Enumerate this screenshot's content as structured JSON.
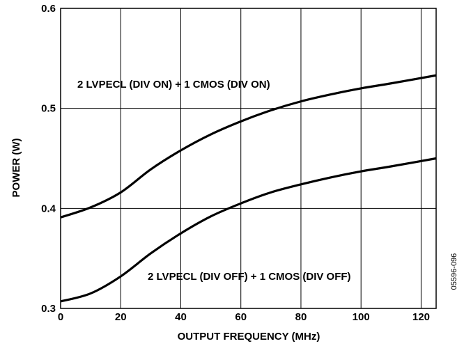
{
  "chart_data": {
    "type": "line",
    "xlabel": "OUTPUT FREQUENCY (MHz)",
    "ylabel": "POWER (W)",
    "xlim": [
      0,
      125
    ],
    "ylim": [
      0.3,
      0.6
    ],
    "x_ticks": [
      0,
      20,
      40,
      60,
      80,
      100,
      120
    ],
    "y_ticks": [
      0.3,
      0.4,
      0.5,
      0.6
    ],
    "x_tick_labels": [
      "0",
      "20",
      "40",
      "60",
      "80",
      "100",
      "120"
    ],
    "y_tick_labels": [
      "0.3",
      "0.4",
      "0.5",
      "0.6"
    ],
    "grid": true,
    "series": [
      {
        "name": "2 LVPECL (DIV ON) + 1 CMOS (DIV ON)",
        "x": [
          0,
          10,
          20,
          30,
          40,
          50,
          60,
          70,
          80,
          90,
          100,
          110,
          125
        ],
        "y": [
          0.391,
          0.401,
          0.416,
          0.439,
          0.458,
          0.474,
          0.487,
          0.498,
          0.507,
          0.514,
          0.52,
          0.525,
          0.533
        ]
      },
      {
        "name": "2 LVPECL (DIV OFF) + 1 CMOS (DIV OFF)",
        "x": [
          0,
          10,
          20,
          30,
          40,
          50,
          60,
          70,
          80,
          90,
          100,
          110,
          125
        ],
        "y": [
          0.307,
          0.315,
          0.332,
          0.355,
          0.375,
          0.392,
          0.405,
          0.416,
          0.424,
          0.431,
          0.437,
          0.442,
          0.45
        ]
      }
    ],
    "figure_id": "05596-096"
  }
}
